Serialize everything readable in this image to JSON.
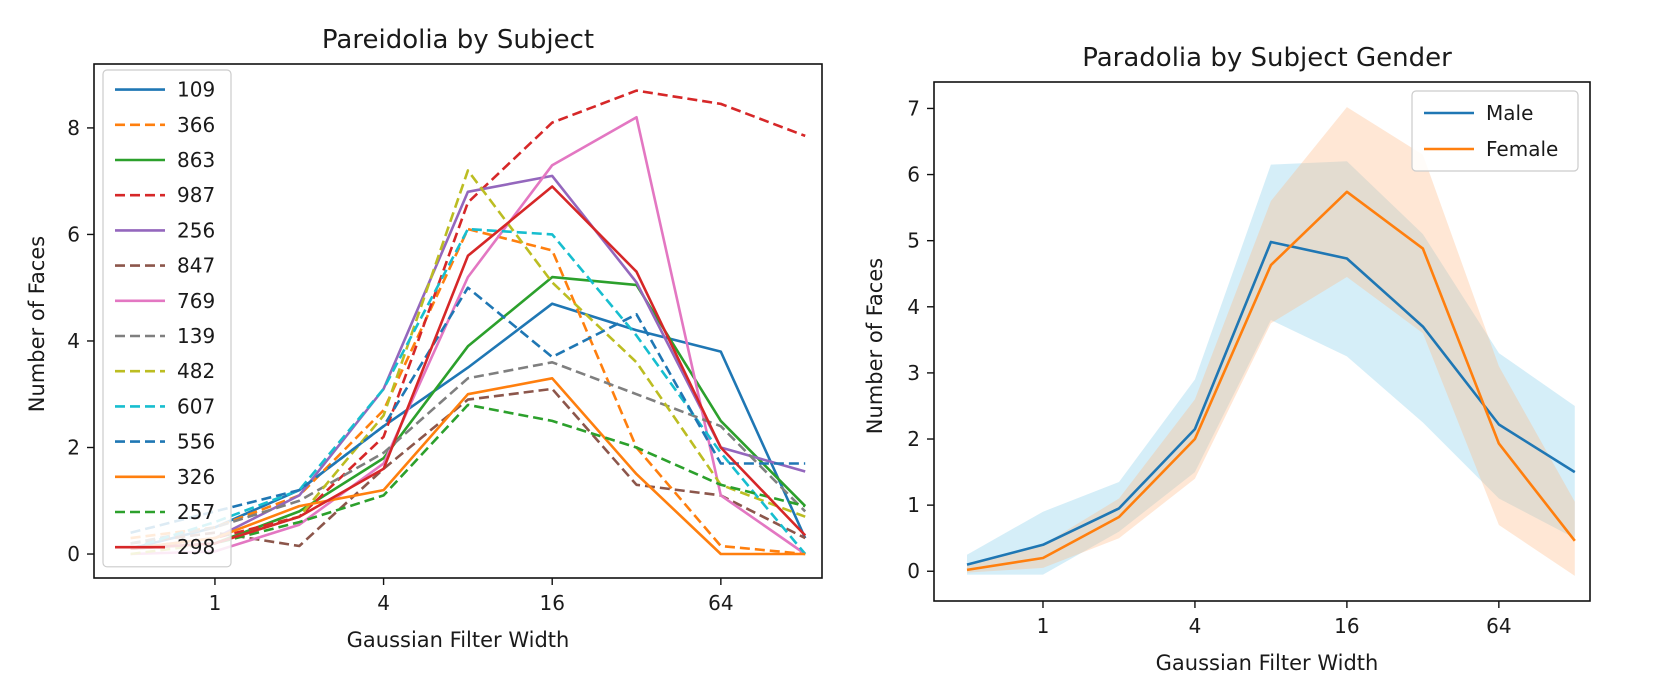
{
  "chart_data": [
    {
      "type": "line",
      "title": "Pareidolia by Subject",
      "xlabel": "Gaussian Filter Width",
      "ylabel": "Number of Faces",
      "xscale": "log2",
      "x": [
        0.5,
        1,
        2,
        4,
        8,
        16,
        32,
        64,
        128
      ],
      "xticks": [
        1,
        4,
        16,
        64
      ],
      "xlim": [
        0.37,
        147
      ],
      "yticks": [
        0,
        2,
        4,
        6,
        8
      ],
      "ylim": [
        -0.45,
        9.2
      ],
      "legend": "upper-left",
      "series": [
        {
          "name": "109",
          "color": "#1f77b4",
          "dash": false,
          "values": [
            0.1,
            0.5,
            1.2,
            2.4,
            3.5,
            4.7,
            4.2,
            3.8,
            0.3
          ]
        },
        {
          "name": "366",
          "color": "#ff7f0e",
          "dash": true,
          "values": [
            0.3,
            0.5,
            1.1,
            2.7,
            6.1,
            5.7,
            2.0,
            0.15,
            0.0
          ]
        },
        {
          "name": "863",
          "color": "#2ca02c",
          "dash": false,
          "values": [
            0.1,
            0.2,
            0.8,
            1.8,
            3.9,
            5.2,
            5.05,
            2.5,
            0.9
          ]
        },
        {
          "name": "987",
          "color": "#d62728",
          "dash": true,
          "values": [
            0.1,
            0.3,
            0.7,
            2.2,
            6.6,
            8.1,
            8.7,
            8.45,
            7.85
          ]
        },
        {
          "name": "256",
          "color": "#9467bd",
          "dash": false,
          "values": [
            0.1,
            0.3,
            1.1,
            3.1,
            6.8,
            7.1,
            5.1,
            2.0,
            1.55
          ]
        },
        {
          "name": "847",
          "color": "#8c564b",
          "dash": true,
          "values": [
            0.2,
            0.4,
            0.15,
            1.6,
            2.9,
            3.1,
            1.3,
            1.1,
            0.3
          ]
        },
        {
          "name": "769",
          "color": "#e377c2",
          "dash": false,
          "values": [
            0.0,
            0.05,
            0.55,
            1.7,
            5.2,
            7.3,
            8.2,
            1.1,
            0.0
          ]
        },
        {
          "name": "139",
          "color": "#7f7f7f",
          "dash": true,
          "values": [
            0.2,
            0.5,
            1.0,
            1.9,
            3.3,
            3.6,
            3.0,
            2.4,
            0.8
          ]
        },
        {
          "name": "482",
          "color": "#bcbd22",
          "dash": true,
          "values": [
            0.0,
            0.2,
            0.7,
            2.6,
            7.2,
            5.1,
            3.6,
            1.3,
            0.7
          ]
        },
        {
          "name": "607",
          "color": "#17becf",
          "dash": true,
          "values": [
            0.1,
            0.6,
            1.2,
            3.1,
            6.1,
            6.0,
            4.1,
            1.9,
            0.0
          ]
        },
        {
          "name": "556",
          "color": "#1f77b4",
          "dash": true,
          "values": [
            0.4,
            0.8,
            1.2,
            2.4,
            5.0,
            3.7,
            4.5,
            1.7,
            1.7
          ]
        },
        {
          "name": "326",
          "color": "#ff7f0e",
          "dash": false,
          "values": [
            0.1,
            0.3,
            0.9,
            1.2,
            3.0,
            3.3,
            1.5,
            0.0,
            0.0
          ]
        },
        {
          "name": "257",
          "color": "#2ca02c",
          "dash": true,
          "values": [
            0.1,
            0.2,
            0.6,
            1.1,
            2.8,
            2.5,
            2.0,
            1.3,
            0.9
          ]
        },
        {
          "name": "298",
          "color": "#d62728",
          "dash": false,
          "values": [
            0.1,
            0.2,
            0.7,
            1.6,
            5.6,
            6.9,
            5.3,
            2.0,
            0.35
          ]
        }
      ]
    },
    {
      "type": "area",
      "title": "Paradolia by Subject Gender",
      "xlabel": "Gaussian Filter Width",
      "ylabel": "Number of Faces",
      "xscale": "log2",
      "x": [
        0.5,
        1,
        2,
        4,
        8,
        16,
        32,
        64,
        128
      ],
      "xticks": [
        1,
        4,
        16,
        64
      ],
      "xlim": [
        0.37,
        147
      ],
      "yticks": [
        0,
        1,
        2,
        3,
        4,
        5,
        6,
        7
      ],
      "ylim": [
        -0.45,
        7.4
      ],
      "legend": "upper-right",
      "series": [
        {
          "name": "Male",
          "color": "#1f77b4",
          "band_color": "#87ceeb",
          "values": [
            0.1,
            0.4,
            0.95,
            2.15,
            4.98,
            4.73,
            3.7,
            2.22,
            1.5
          ],
          "lower": [
            -0.05,
            -0.05,
            0.6,
            1.5,
            3.8,
            3.25,
            2.25,
            1.1,
            0.5
          ],
          "upper": [
            0.25,
            0.9,
            1.35,
            2.9,
            6.15,
            6.2,
            5.1,
            3.3,
            2.5
          ]
        },
        {
          "name": "Female",
          "color": "#ff7f0e",
          "band_color": "#ffbb88",
          "values": [
            0.02,
            0.2,
            0.82,
            2.0,
            4.63,
            5.74,
            4.88,
            1.93,
            0.46
          ],
          "lower": [
            -0.02,
            0.05,
            0.5,
            1.4,
            3.75,
            4.45,
            3.6,
            0.7,
            -0.07
          ],
          "upper": [
            0.1,
            0.4,
            1.1,
            2.6,
            5.6,
            7.02,
            6.3,
            3.1,
            1.05
          ]
        }
      ]
    }
  ]
}
